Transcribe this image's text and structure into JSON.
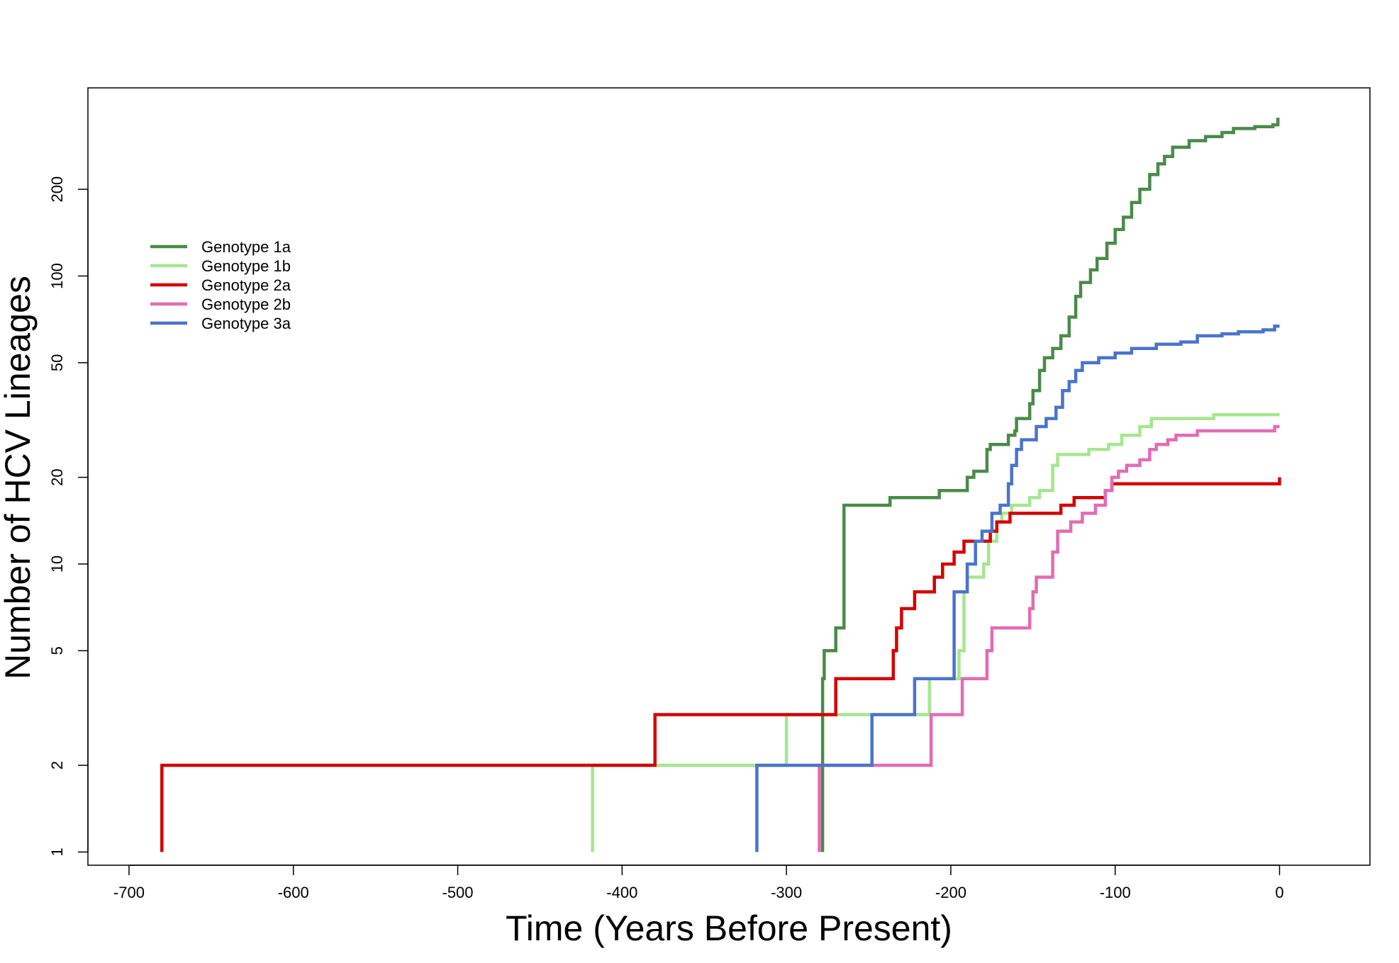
{
  "chart_data": {
    "type": "line",
    "step": true,
    "title": "",
    "xlabel": "Time (Years Before Present)",
    "ylabel": "Number of HCV Lineages",
    "xlim": [
      -725,
      55
    ],
    "ylim": [
      0.9,
      450
    ],
    "yscale": "log",
    "grid": false,
    "legend_position": "top-left",
    "xticks": [
      -700,
      -600,
      -500,
      -400,
      -300,
      -200,
      -100,
      0
    ],
    "xtick_labels": [
      "-700",
      "-600",
      "-500",
      "-400",
      "-300",
      "-200",
      "-100",
      "0"
    ],
    "yticks": [
      1,
      2,
      5,
      10,
      20,
      50,
      100,
      200
    ],
    "ytick_labels": [
      "1",
      "2",
      "5",
      "10",
      "20",
      "50",
      "100",
      "200"
    ],
    "series": [
      {
        "name": "Genotype 1a",
        "color": "#4a8a4a",
        "points": [
          [
            -278,
            1
          ],
          [
            -278,
            4
          ],
          [
            -277,
            4
          ],
          [
            -277,
            5
          ],
          [
            -270,
            5
          ],
          [
            -270,
            6
          ],
          [
            -265,
            6
          ],
          [
            -265,
            16
          ],
          [
            -237,
            16
          ],
          [
            -237,
            17
          ],
          [
            -207,
            17
          ],
          [
            -207,
            18
          ],
          [
            -190,
            18
          ],
          [
            -190,
            20
          ],
          [
            -186,
            20
          ],
          [
            -186,
            21
          ],
          [
            -178,
            21
          ],
          [
            -178,
            25
          ],
          [
            -176,
            25
          ],
          [
            -176,
            26
          ],
          [
            -165,
            26
          ],
          [
            -165,
            28
          ],
          [
            -161,
            28
          ],
          [
            -161,
            29
          ],
          [
            -160,
            29
          ],
          [
            -160,
            32
          ],
          [
            -152,
            32
          ],
          [
            -152,
            36
          ],
          [
            -150,
            36
          ],
          [
            -150,
            40
          ],
          [
            -146,
            40
          ],
          [
            -146,
            47
          ],
          [
            -143,
            47
          ],
          [
            -143,
            52
          ],
          [
            -138,
            52
          ],
          [
            -138,
            56
          ],
          [
            -133,
            56
          ],
          [
            -133,
            62
          ],
          [
            -128,
            62
          ],
          [
            -128,
            72
          ],
          [
            -124,
            72
          ],
          [
            -124,
            85
          ],
          [
            -121,
            85
          ],
          [
            -121,
            95
          ],
          [
            -115,
            95
          ],
          [
            -115,
            105
          ],
          [
            -111,
            105
          ],
          [
            -111,
            115
          ],
          [
            -105,
            115
          ],
          [
            -105,
            130
          ],
          [
            -100,
            130
          ],
          [
            -100,
            145
          ],
          [
            -95,
            145
          ],
          [
            -95,
            160
          ],
          [
            -90,
            160
          ],
          [
            -90,
            180
          ],
          [
            -85,
            180
          ],
          [
            -85,
            200
          ],
          [
            -79,
            200
          ],
          [
            -79,
            225
          ],
          [
            -74,
            225
          ],
          [
            -74,
            245
          ],
          [
            -70,
            245
          ],
          [
            -70,
            260
          ],
          [
            -65,
            260
          ],
          [
            -65,
            280
          ],
          [
            -55,
            280
          ],
          [
            -55,
            295
          ],
          [
            -45,
            295
          ],
          [
            -45,
            305
          ],
          [
            -35,
            305
          ],
          [
            -35,
            315
          ],
          [
            -28,
            315
          ],
          [
            -28,
            325
          ],
          [
            -15,
            325
          ],
          [
            -15,
            330
          ],
          [
            -4,
            330
          ],
          [
            -4,
            335
          ],
          [
            -1,
            335
          ],
          [
            -1,
            350
          ],
          [
            0,
            350
          ]
        ]
      },
      {
        "name": "Genotype 1b",
        "color": "#a6e68f",
        "points": [
          [
            -418,
            1
          ],
          [
            -418,
            2
          ],
          [
            -300,
            2
          ],
          [
            -300,
            3
          ],
          [
            -213,
            3
          ],
          [
            -213,
            4
          ],
          [
            -195,
            4
          ],
          [
            -195,
            5
          ],
          [
            -192,
            5
          ],
          [
            -192,
            8
          ],
          [
            -190,
            8
          ],
          [
            -190,
            9
          ],
          [
            -180,
            9
          ],
          [
            -180,
            10
          ],
          [
            -177,
            10
          ],
          [
            -177,
            12
          ],
          [
            -172,
            12
          ],
          [
            -172,
            14
          ],
          [
            -169,
            14
          ],
          [
            -169,
            15
          ],
          [
            -163,
            15
          ],
          [
            -163,
            16
          ],
          [
            -152,
            16
          ],
          [
            -152,
            17
          ],
          [
            -146,
            17
          ],
          [
            -146,
            18
          ],
          [
            -138,
            18
          ],
          [
            -138,
            22
          ],
          [
            -135,
            22
          ],
          [
            -135,
            24
          ],
          [
            -116,
            24
          ],
          [
            -116,
            25
          ],
          [
            -104,
            25
          ],
          [
            -104,
            26
          ],
          [
            -96,
            26
          ],
          [
            -96,
            28
          ],
          [
            -85,
            28
          ],
          [
            -85,
            30
          ],
          [
            -78,
            30
          ],
          [
            -78,
            32
          ],
          [
            -40,
            32
          ],
          [
            -40,
            33
          ],
          [
            0,
            33
          ]
        ]
      },
      {
        "name": "Genotype 2a",
        "color": "#d40000",
        "points": [
          [
            -680,
            1
          ],
          [
            -680,
            2
          ],
          [
            -380,
            2
          ],
          [
            -380,
            3
          ],
          [
            -270,
            3
          ],
          [
            -270,
            4
          ],
          [
            -235,
            4
          ],
          [
            -235,
            5
          ],
          [
            -233,
            5
          ],
          [
            -233,
            6
          ],
          [
            -230,
            6
          ],
          [
            -230,
            7
          ],
          [
            -222,
            7
          ],
          [
            -222,
            8
          ],
          [
            -210,
            8
          ],
          [
            -210,
            9
          ],
          [
            -205,
            9
          ],
          [
            -205,
            10
          ],
          [
            -198,
            10
          ],
          [
            -198,
            11
          ],
          [
            -192,
            11
          ],
          [
            -192,
            12
          ],
          [
            -176,
            12
          ],
          [
            -176,
            13
          ],
          [
            -172,
            13
          ],
          [
            -172,
            14
          ],
          [
            -164,
            14
          ],
          [
            -164,
            15
          ],
          [
            -133,
            15
          ],
          [
            -133,
            16
          ],
          [
            -125,
            16
          ],
          [
            -125,
            17
          ],
          [
            -106,
            17
          ],
          [
            -106,
            18
          ],
          [
            -102,
            18
          ],
          [
            -102,
            19
          ],
          [
            0,
            19
          ],
          [
            0,
            20
          ]
        ]
      },
      {
        "name": "Genotype 2b",
        "color": "#e36bb3",
        "points": [
          [
            -280,
            1
          ],
          [
            -280,
            2
          ],
          [
            -212,
            2
          ],
          [
            -212,
            3
          ],
          [
            -193,
            3
          ],
          [
            -193,
            4
          ],
          [
            -178,
            4
          ],
          [
            -178,
            5
          ],
          [
            -175,
            5
          ],
          [
            -175,
            6
          ],
          [
            -152,
            6
          ],
          [
            -152,
            7
          ],
          [
            -150,
            7
          ],
          [
            -150,
            8
          ],
          [
            -148,
            8
          ],
          [
            -148,
            9
          ],
          [
            -138,
            9
          ],
          [
            -138,
            11
          ],
          [
            -135,
            11
          ],
          [
            -135,
            13
          ],
          [
            -127,
            13
          ],
          [
            -127,
            14
          ],
          [
            -120,
            14
          ],
          [
            -120,
            15
          ],
          [
            -112,
            15
          ],
          [
            -112,
            16
          ],
          [
            -106,
            16
          ],
          [
            -106,
            18
          ],
          [
            -102,
            18
          ],
          [
            -102,
            20
          ],
          [
            -98,
            20
          ],
          [
            -98,
            21
          ],
          [
            -93,
            21
          ],
          [
            -93,
            22
          ],
          [
            -85,
            22
          ],
          [
            -85,
            23
          ],
          [
            -79,
            23
          ],
          [
            -79,
            25
          ],
          [
            -75,
            25
          ],
          [
            -75,
            26
          ],
          [
            -68,
            26
          ],
          [
            -68,
            27
          ],
          [
            -63,
            27
          ],
          [
            -63,
            28
          ],
          [
            -50,
            28
          ],
          [
            -50,
            29
          ],
          [
            -3,
            29
          ],
          [
            -3,
            30
          ],
          [
            0,
            30
          ]
        ]
      },
      {
        "name": "Genotype 3a",
        "color": "#4a73cc",
        "points": [
          [
            -318,
            1
          ],
          [
            -318,
            2
          ],
          [
            -248,
            2
          ],
          [
            -248,
            3
          ],
          [
            -222,
            3
          ],
          [
            -222,
            4
          ],
          [
            -198,
            4
          ],
          [
            -198,
            8
          ],
          [
            -190,
            8
          ],
          [
            -190,
            10
          ],
          [
            -185,
            10
          ],
          [
            -185,
            12
          ],
          [
            -181,
            12
          ],
          [
            -181,
            13
          ],
          [
            -175,
            13
          ],
          [
            -175,
            15
          ],
          [
            -170,
            15
          ],
          [
            -170,
            16
          ],
          [
            -165,
            16
          ],
          [
            -165,
            19
          ],
          [
            -163,
            19
          ],
          [
            -163,
            22
          ],
          [
            -160,
            22
          ],
          [
            -160,
            25
          ],
          [
            -157,
            25
          ],
          [
            -157,
            27
          ],
          [
            -148,
            27
          ],
          [
            -148,
            30
          ],
          [
            -142,
            30
          ],
          [
            -142,
            32
          ],
          [
            -136,
            32
          ],
          [
            -136,
            35
          ],
          [
            -132,
            35
          ],
          [
            -132,
            40
          ],
          [
            -128,
            40
          ],
          [
            -128,
            43
          ],
          [
            -124,
            43
          ],
          [
            -124,
            47
          ],
          [
            -120,
            47
          ],
          [
            -120,
            50
          ],
          [
            -110,
            50
          ],
          [
            -110,
            52
          ],
          [
            -100,
            52
          ],
          [
            -100,
            54
          ],
          [
            -90,
            54
          ],
          [
            -90,
            56
          ],
          [
            -75,
            56
          ],
          [
            -75,
            58
          ],
          [
            -60,
            58
          ],
          [
            -60,
            59
          ],
          [
            -50,
            59
          ],
          [
            -50,
            62
          ],
          [
            -35,
            62
          ],
          [
            -35,
            63
          ],
          [
            -25,
            63
          ],
          [
            -25,
            64
          ],
          [
            -10,
            64
          ],
          [
            -10,
            65
          ],
          [
            -3,
            65
          ],
          [
            -3,
            67
          ],
          [
            0,
            67
          ]
        ]
      }
    ]
  }
}
